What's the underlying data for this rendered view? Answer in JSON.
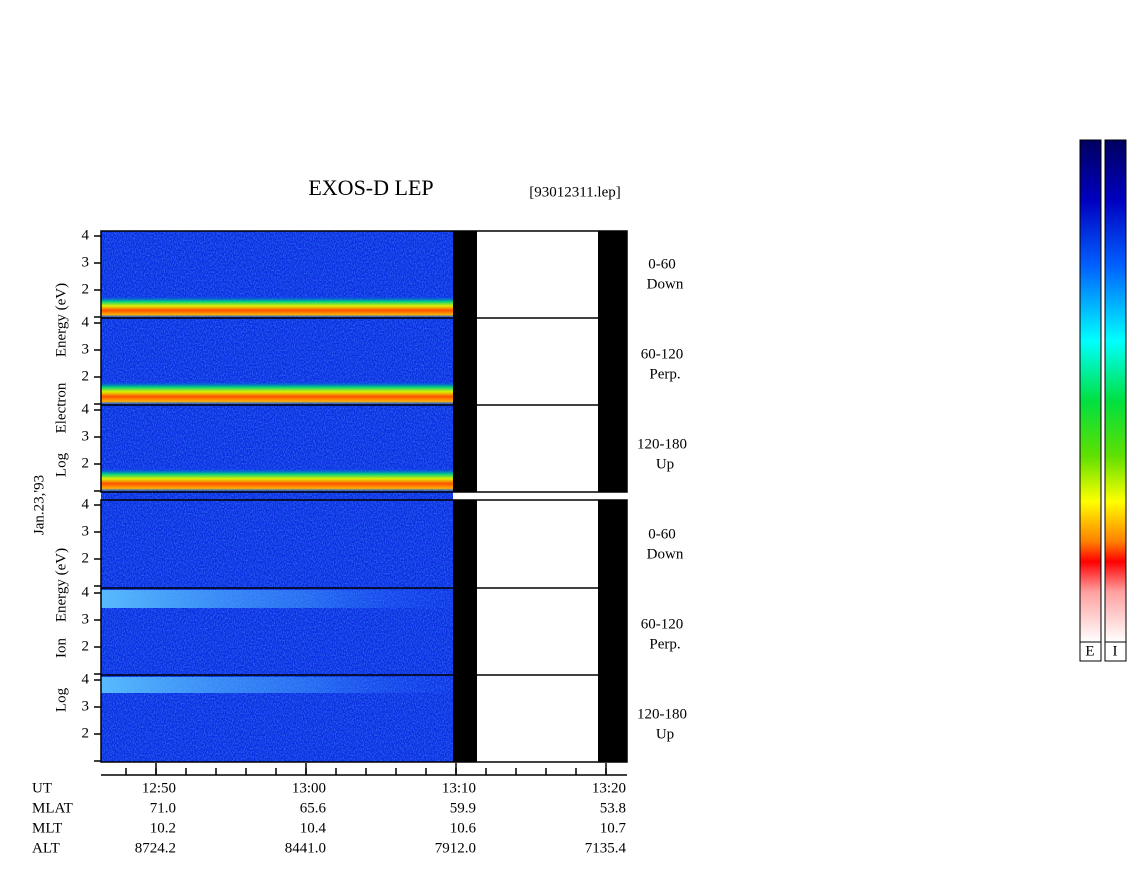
{
  "title": "EXOS-D LEP",
  "file": "[93012311.lep]",
  "date": "Jan.23,'93",
  "electron_label": [
    "Log",
    "Electron",
    "Energy (eV)"
  ],
  "ion_label": [
    "Log",
    "Ion",
    "Energy (eV)"
  ],
  "pitch_panels": [
    {
      "angle": "0-60",
      "dir": "Down"
    },
    {
      "angle": "60-120",
      "dir": "Perp."
    },
    {
      "angle": "120-180",
      "dir": "Up"
    }
  ],
  "energy_ticks": [
    4,
    3,
    2
  ],
  "time_ticks": [
    "12:50",
    "13:00",
    "13:10",
    "13:20"
  ],
  "ephemeris": [
    {
      "name": "UT",
      "values": []
    },
    {
      "name": "MLAT",
      "values": [
        "71.0",
        "65.6",
        "59.9",
        "53.8"
      ]
    },
    {
      "name": "MLT",
      "values": [
        "10.2",
        "10.4",
        "10.6",
        "10.7"
      ]
    },
    {
      "name": "ALT",
      "values": [
        "8724.2",
        "8441.0",
        "7912.0",
        "7135.4"
      ]
    }
  ],
  "colorbar_labels": [
    "E",
    "I"
  ]
}
